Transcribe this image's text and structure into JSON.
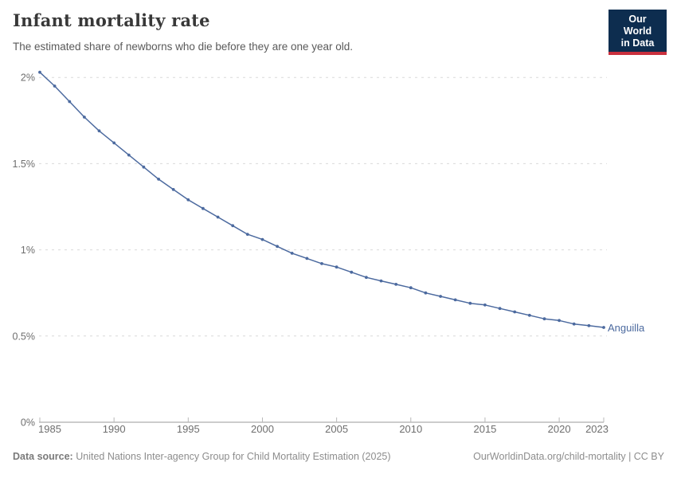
{
  "header": {
    "title": "Infant mortality rate",
    "subtitle": "The estimated share of newborns who die before they are one year old.",
    "logo_line1": "Our World",
    "logo_line2": "in Data"
  },
  "footer": {
    "source_label": "Data source:",
    "source_text": "United Nations Inter-agency Group for Child Mortality Estimation (2025)",
    "attribution": "OurWorldinData.org/child-mortality | CC BY"
  },
  "colors": {
    "line": "#4c6a9f",
    "grid": "#d9d9d9",
    "axis": "#9a9a9a",
    "tick_label": "#6e6e6e",
    "logo_bg": "#0d2d4f",
    "logo_accent": "#c9303e"
  },
  "chart_data": {
    "type": "line",
    "title": "Infant mortality rate",
    "subtitle": "The estimated share of newborns who die before they are one year old.",
    "xlabel": "",
    "ylabel": "",
    "xlim": [
      1985,
      2023
    ],
    "ylim": [
      0,
      2.05
    ],
    "grid": "horizontal-dashed",
    "legend_position": "end-of-line",
    "x_ticks": [
      1985,
      1990,
      1995,
      2000,
      2005,
      2010,
      2015,
      2020,
      2023
    ],
    "y_ticks": [
      {
        "value": 0,
        "label": "0%"
      },
      {
        "value": 0.5,
        "label": "0.5%"
      },
      {
        "value": 1,
        "label": "1%"
      },
      {
        "value": 1.5,
        "label": "1.5%"
      },
      {
        "value": 2,
        "label": "2%"
      }
    ],
    "series": [
      {
        "name": "Anguilla",
        "color": "#4c6a9f",
        "unit": "%",
        "x": [
          1985,
          1986,
          1987,
          1988,
          1989,
          1990,
          1991,
          1992,
          1993,
          1994,
          1995,
          1996,
          1997,
          1998,
          1999,
          2000,
          2001,
          2002,
          2003,
          2004,
          2005,
          2006,
          2007,
          2008,
          2009,
          2010,
          2011,
          2012,
          2013,
          2014,
          2015,
          2016,
          2017,
          2018,
          2019,
          2020,
          2021,
          2022,
          2023
        ],
        "values": [
          2.03,
          1.95,
          1.86,
          1.77,
          1.69,
          1.62,
          1.55,
          1.48,
          1.41,
          1.35,
          1.29,
          1.24,
          1.19,
          1.14,
          1.09,
          1.06,
          1.02,
          0.98,
          0.95,
          0.92,
          0.9,
          0.87,
          0.84,
          0.82,
          0.8,
          0.78,
          0.75,
          0.73,
          0.71,
          0.69,
          0.68,
          0.66,
          0.64,
          0.62,
          0.6,
          0.59,
          0.57,
          0.56,
          0.55
        ]
      }
    ]
  }
}
